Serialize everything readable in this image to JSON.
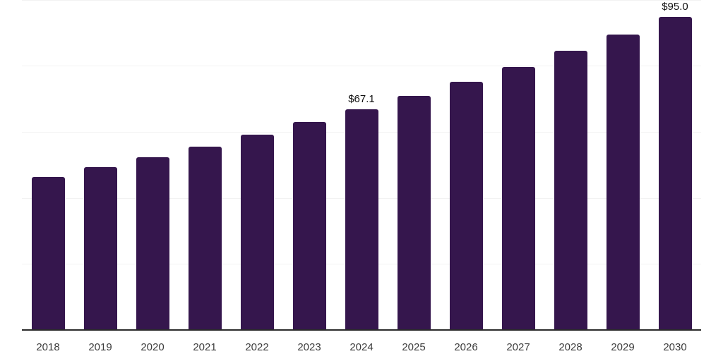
{
  "chart_data": {
    "type": "bar",
    "title": "",
    "xlabel": "",
    "ylabel": "",
    "categories": [
      "2018",
      "2019",
      "2020",
      "2021",
      "2022",
      "2023",
      "2024",
      "2025",
      "2026",
      "2027",
      "2028",
      "2029",
      "2030"
    ],
    "values": [
      46.5,
      49.5,
      52.5,
      55.8,
      59.3,
      63.1,
      67.1,
      71.1,
      75.3,
      79.9,
      84.8,
      89.7,
      95.0
    ],
    "data_labels": [
      {
        "category": "2024",
        "text": "$67.1"
      },
      {
        "category": "2030",
        "text": "$95.0"
      }
    ],
    "ylim": [
      0,
      100
    ],
    "grid": true,
    "gridline_values": [
      20,
      40,
      60,
      80,
      100
    ],
    "legend": "none",
    "colors": {
      "bar": "#35164d",
      "axis_line": "#2b2b2b",
      "gridline": "#f2f2f2",
      "data_label_text": "#111111",
      "tick_label_text": "#3c3c3c",
      "background": "#ffffff"
    }
  }
}
